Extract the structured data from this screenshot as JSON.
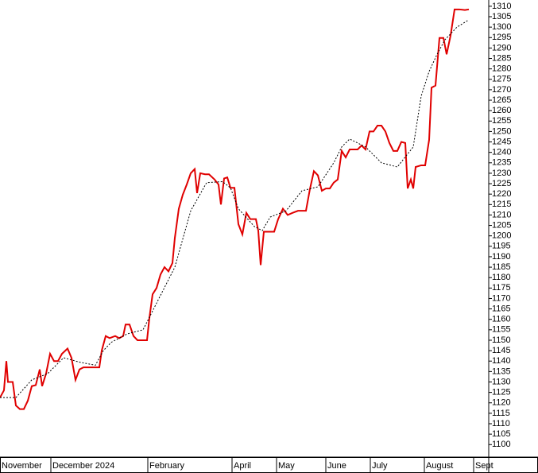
{
  "chart_data": {
    "type": "line",
    "xlim": [
      0,
      307.5
    ],
    "ylim": [
      1094,
      1313
    ],
    "xticks": [
      {
        "value": 0,
        "label": "November"
      },
      {
        "value": 32,
        "label": "December 2024"
      },
      {
        "value": 93,
        "label": "February"
      },
      {
        "value": 146,
        "label": "April"
      },
      {
        "value": 174,
        "label": "May"
      },
      {
        "value": 205,
        "label": "June"
      },
      {
        "value": 233,
        "label": "July"
      },
      {
        "value": 267,
        "label": "August"
      },
      {
        "value": 298,
        "label": "Sept"
      }
    ],
    "yticks": [
      1100,
      1105,
      1110,
      1115,
      1120,
      1125,
      1130,
      1135,
      1140,
      1145,
      1150,
      1155,
      1160,
      1165,
      1170,
      1175,
      1180,
      1185,
      1190,
      1195,
      1200,
      1205,
      1210,
      1215,
      1220,
      1225,
      1230,
      1235,
      1240,
      1245,
      1250,
      1255,
      1260,
      1265,
      1270,
      1275,
      1280,
      1285,
      1290,
      1295,
      1300,
      1305,
      1310
    ],
    "series": [
      {
        "color": "#e00000",
        "x": [
          0,
          2.5,
          4,
          5,
          8,
          10,
          12.5,
          15,
          17.5,
          20,
          22.5,
          25,
          26.5,
          29,
          31.5,
          34,
          36.5,
          39,
          42.5,
          45,
          47.5,
          50,
          52.5,
          57.5,
          62.5,
          64,
          66.5,
          69,
          72.5,
          75,
          77.5,
          79,
          81.5,
          84,
          86.5,
          92.5,
          94,
          96,
          98.5,
          101,
          103.5,
          106,
          108.5,
          110,
          112.5,
          115,
          117.5,
          120,
          122.5,
          124,
          126,
          129,
          131.5,
          135,
          137.5,
          139,
          141,
          143,
          145,
          147.5,
          150,
          152.5,
          155,
          157.5,
          161,
          162.5,
          164,
          166,
          169,
          172.5,
          175,
          178,
          181,
          184,
          187.5,
          192.5,
          195,
          197.5,
          200,
          202.5,
          205,
          207.5,
          210,
          212.5,
          215,
          217.5,
          220,
          222.5,
          225,
          227.5,
          230,
          232.5,
          235,
          237.5,
          240,
          242.5,
          245,
          247.5,
          250,
          252.5,
          255,
          256.5,
          258.5,
          260,
          261.5,
          265,
          267.5,
          270,
          271.5,
          274,
          276.5,
          279,
          281,
          283.5,
          286,
          289,
          292.5,
          295
        ],
        "values": [
          1122.5,
          1126,
          1140,
          1130,
          1130,
          1118.7,
          1117,
          1117,
          1121,
          1128,
          1128.5,
          1136,
          1128,
          1134,
          1143.5,
          1140,
          1140,
          1143.5,
          1146,
          1141.5,
          1131,
          1136,
          1137,
          1137,
          1137,
          1145,
          1152,
          1151,
          1152,
          1151,
          1152,
          1157.5,
          1157.5,
          1152,
          1150,
          1150,
          1160.7,
          1172,
          1175,
          1181.5,
          1185,
          1183,
          1187,
          1199,
          1213,
          1219.7,
          1224.6,
          1230,
          1232,
          1220.5,
          1230,
          1229.5,
          1229.5,
          1227,
          1224.6,
          1215,
          1227.5,
          1228,
          1223,
          1223,
          1205.6,
          1200.7,
          1211,
          1208,
          1208,
          1202.5,
          1186,
          1202,
          1202,
          1202,
          1208,
          1213,
          1210,
          1211,
          1212,
          1212,
          1222.4,
          1231,
          1229,
          1221.6,
          1222.7,
          1222.7,
          1225.5,
          1227,
          1240.7,
          1237.6,
          1241.4,
          1241.4,
          1241.4,
          1243.3,
          1241.4,
          1250,
          1250,
          1252.8,
          1252.8,
          1250,
          1244.5,
          1240.7,
          1240.7,
          1245,
          1244.5,
          1222.7,
          1227,
          1222.7,
          1233,
          1233.8,
          1233.8,
          1246,
          1271,
          1272,
          1294.8,
          1294.8,
          1287,
          1296,
          1308.5,
          1308.5,
          1308.2,
          1308.5
        ]
      },
      {
        "color": "#000000",
        "x": [
          0,
          10,
          20,
          30,
          40,
          50,
          60,
          65,
          70,
          80,
          90,
          100,
          110,
          120,
          130,
          140,
          145,
          150,
          160,
          165,
          170,
          180,
          190,
          200,
          210,
          215,
          220,
          230,
          240,
          250,
          260,
          265,
          270,
          275,
          280,
          287.5,
          295
        ],
        "values": [
          1122.5,
          1122.5,
          1131,
          1134,
          1141.6,
          1139.5,
          1138,
          1145,
          1149,
          1153,
          1155,
          1170,
          1185,
          1212,
          1225.5,
          1226,
          1223,
          1213,
          1204.5,
          1202.5,
          1209,
          1212,
          1221.6,
          1223.5,
          1235,
          1242.6,
          1246.4,
          1242.6,
          1235,
          1233,
          1242.6,
          1267,
          1278.8,
          1287,
          1294,
          1300,
          1303.5
        ]
      }
    ]
  }
}
